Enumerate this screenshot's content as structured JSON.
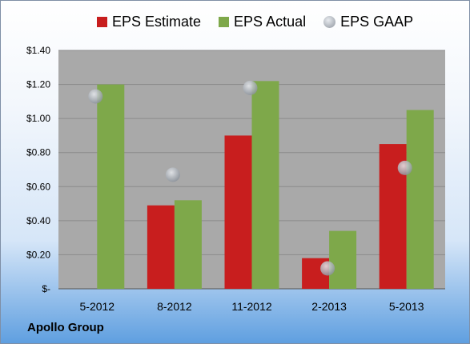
{
  "legend": {
    "estimate_label": "EPS Estimate",
    "actual_label": "EPS Actual",
    "gaap_label": "EPS GAAP"
  },
  "company": "Apollo Group",
  "colors": {
    "estimate": "#c81e1e",
    "actual": "#7ea84a",
    "gaap": "#b8bec6",
    "plot_bg": "#a9a9a9"
  },
  "chart_data": {
    "type": "bar",
    "categories": [
      "5-2012",
      "8-2012",
      "11-2012",
      "2-2013",
      "5-2013"
    ],
    "series": [
      {
        "name": "EPS Estimate",
        "values": [
          null,
          0.49,
          0.9,
          0.18,
          0.85
        ]
      },
      {
        "name": "EPS Actual",
        "values": [
          1.2,
          0.52,
          1.22,
          0.34,
          1.05
        ]
      },
      {
        "name": "EPS GAAP",
        "values": [
          1.13,
          0.67,
          1.18,
          0.12,
          0.71
        ]
      }
    ],
    "ylim": [
      0,
      1.4
    ],
    "yticks": [
      0,
      0.2,
      0.4,
      0.6,
      0.8,
      1.0,
      1.2,
      1.4
    ],
    "ytick_labels": [
      "$-",
      "$0.20",
      "$0.40",
      "$0.60",
      "$0.80",
      "$1.00",
      "$1.20",
      "$1.40"
    ],
    "grid": true,
    "legend_position": "top"
  }
}
